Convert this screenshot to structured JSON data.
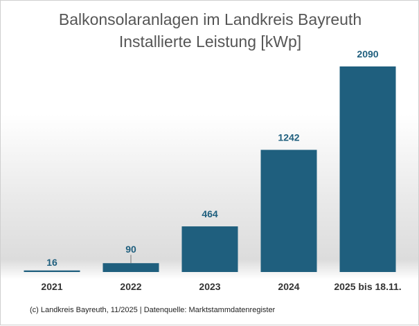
{
  "chart_data": {
    "type": "bar",
    "title_line1": "Balkonsolaranlagen im Landkreis Bayreuth",
    "title_line2": "Installierte Leistung [kWp]",
    "categories": [
      "2021",
      "2022",
      "2023",
      "2024",
      "2025 bis 18.11."
    ],
    "values": [
      16,
      90,
      464,
      1242,
      2090
    ],
    "value_labels": [
      "16",
      "90",
      "464",
      "1242",
      "2090"
    ],
    "xlabel": "",
    "ylabel": "",
    "ylim": [
      0,
      2090
    ],
    "grid": false,
    "legend": "none",
    "bar_color": "#1f5f7e",
    "label_color": "#1f5f7e"
  },
  "footer": "(c) Landkreis Bayreuth, 11/2025 | Datenquelle: Marktstammdatenregister"
}
